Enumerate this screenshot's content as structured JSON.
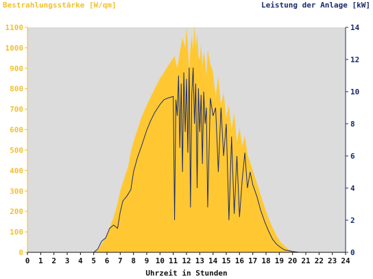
{
  "titles": {
    "left": "Bestrahlungsstärke [W/qm]",
    "right": "Leistung der Anlage [kW]"
  },
  "colors": {
    "background": "#ffffff",
    "plot_bg": "#dcdcdc",
    "irradiance": "#ffc832",
    "power": "#1a2a6c",
    "left_axis": "#f2c12e",
    "right_axis": "#1a2a6c"
  },
  "chart_data": {
    "type": "area",
    "xlabel": "Uhrzeit in Stunden",
    "xlim": [
      0,
      24
    ],
    "x_ticks": [
      0,
      1,
      2,
      3,
      4,
      5,
      6,
      7,
      8,
      9,
      10,
      11,
      12,
      13,
      14,
      15,
      16,
      17,
      18,
      19,
      20,
      21,
      22,
      23,
      24
    ],
    "y_left": {
      "label": "Bestrahlungsstärke [W/qm]",
      "lim": [
        0,
        1100
      ],
      "ticks": [
        0,
        100,
        200,
        300,
        400,
        500,
        600,
        700,
        800,
        900,
        1000,
        1100
      ]
    },
    "y_right": {
      "label": "Leistung der Anlage [kW]",
      "lim": [
        0,
        14
      ],
      "ticks": [
        0,
        2,
        4,
        6,
        8,
        10,
        12,
        14
      ]
    },
    "grid": false,
    "series": [
      {
        "name": "Bestrahlungsstärke [W/qm]",
        "axis": "left",
        "type": "area",
        "x": [
          0,
          5.0,
          5.3,
          5.6,
          5.9,
          6.2,
          6.5,
          6.8,
          7.0,
          7.3,
          7.6,
          7.8,
          8.0,
          8.3,
          8.6,
          9.0,
          9.3,
          9.6,
          10.0,
          10.3,
          10.6,
          10.9,
          11.1,
          11.2,
          11.3,
          11.5,
          11.7,
          11.9,
          12.0,
          12.1,
          12.2,
          12.3,
          12.4,
          12.5,
          12.6,
          12.7,
          12.8,
          12.9,
          13.0,
          13.1,
          13.2,
          13.3,
          13.4,
          13.5,
          13.6,
          13.8,
          14.0,
          14.2,
          14.4,
          14.6,
          14.8,
          15.0,
          15.2,
          15.4,
          15.6,
          15.8,
          16.0,
          16.2,
          16.4,
          16.6,
          16.8,
          17.0,
          17.3,
          17.6,
          17.9,
          18.2,
          18.5,
          18.8,
          19.1,
          19.4,
          19.7,
          20.0,
          20.3,
          20.6,
          21.0,
          24
        ],
        "values": [
          0,
          0,
          10,
          40,
          75,
          120,
          170,
          240,
          300,
          360,
          420,
          490,
          540,
          600,
          660,
          720,
          760,
          800,
          850,
          880,
          910,
          940,
          960,
          930,
          900,
          980,
          1050,
          1000,
          1100,
          1020,
          880,
          1000,
          1060,
          990,
          1110,
          1000,
          1070,
          960,
          940,
          1020,
          910,
          980,
          940,
          860,
          990,
          920,
          880,
          760,
          860,
          720,
          780,
          660,
          720,
          600,
          680,
          540,
          610,
          520,
          570,
          480,
          440,
          400,
          340,
          280,
          220,
          165,
          120,
          80,
          50,
          30,
          15,
          5,
          0,
          0,
          0,
          0
        ]
      },
      {
        "name": "Leistung der Anlage [kW]",
        "axis": "right",
        "type": "line",
        "x": [
          0,
          5.0,
          5.3,
          5.6,
          5.9,
          6.2,
          6.5,
          6.8,
          7.0,
          7.2,
          7.5,
          7.8,
          8.0,
          8.3,
          8.6,
          9.0,
          9.3,
          9.6,
          10.0,
          10.3,
          10.6,
          11.0,
          11.1,
          11.2,
          11.3,
          11.4,
          11.5,
          11.6,
          11.7,
          11.8,
          11.9,
          12.0,
          12.1,
          12.2,
          12.3,
          12.4,
          12.5,
          12.6,
          12.7,
          12.8,
          12.9,
          13.0,
          13.1,
          13.2,
          13.3,
          13.4,
          13.5,
          13.6,
          13.8,
          14.0,
          14.2,
          14.4,
          14.6,
          14.8,
          15.0,
          15.2,
          15.4,
          15.6,
          15.8,
          16.0,
          16.2,
          16.4,
          16.6,
          16.8,
          17.0,
          17.3,
          17.6,
          17.9,
          18.2,
          18.5,
          18.8,
          19.1,
          19.4,
          19.7,
          20.0,
          20.5,
          24
        ],
        "values": [
          0,
          0,
          0.2,
          0.7,
          0.9,
          1.5,
          1.7,
          1.5,
          2.5,
          3.2,
          3.5,
          3.9,
          5.0,
          5.9,
          6.6,
          7.6,
          8.2,
          8.7,
          9.2,
          9.5,
          9.6,
          9.7,
          2.0,
          9.5,
          8.5,
          11.0,
          6.5,
          10.5,
          5.0,
          11.2,
          7.5,
          10.8,
          6.2,
          11.5,
          2.8,
          9.8,
          11.5,
          8.0,
          10.5,
          4.0,
          10.2,
          7.5,
          9.8,
          5.5,
          10.0,
          8.0,
          9.0,
          2.8,
          9.6,
          8.5,
          9.0,
          5.0,
          9.0,
          6.0,
          8.0,
          2.0,
          7.2,
          2.4,
          6.0,
          2.2,
          4.5,
          6.2,
          4.0,
          5.0,
          4.2,
          3.5,
          2.6,
          1.9,
          1.3,
          0.8,
          0.5,
          0.3,
          0.15,
          0.1,
          0.05,
          0,
          0
        ]
      }
    ]
  }
}
